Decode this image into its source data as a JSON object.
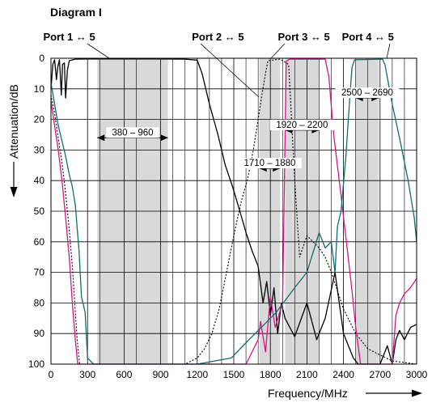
{
  "chart_data": {
    "type": "line",
    "title": "Diagram I",
    "xlabel": "Frequency/MHz",
    "ylabel": "Attenuation/dB",
    "xlim": [
      0,
      3000
    ],
    "ylim": [
      0,
      100
    ],
    "y_inverted": true,
    "grid": true,
    "x_ticks": [
      0,
      300,
      600,
      900,
      1200,
      1500,
      1800,
      2100,
      2400,
      2700,
      3000
    ],
    "y_ticks": [
      0,
      10,
      20,
      30,
      40,
      50,
      60,
      70,
      80,
      90,
      100
    ],
    "x_minor_gridlines": [
      400,
      700,
      1000,
      1100,
      1300,
      1400,
      1600,
      1700,
      1900,
      2000,
      2200,
      2300,
      2500,
      2600,
      2800,
      2900
    ],
    "port_labels": [
      {
        "text": "Port 1 ↔ 5",
        "x": 150
      },
      {
        "text": "Port 2 ↔ 5",
        "x": 1370
      },
      {
        "text": "Port 3 ↔ 5",
        "x": 2075
      },
      {
        "text": "Port 4 ↔ 5",
        "x": 2600
      }
    ],
    "bands": [
      {
        "label": "380 – 960",
        "from": 380,
        "to": 960,
        "label_y": 26
      },
      {
        "label": "1710 – 1880",
        "from": 1710,
        "to": 1880,
        "label_y": 36
      },
      {
        "label": "1920 – 2200",
        "from": 1920,
        "to": 2200,
        "label_y": 23.5
      },
      {
        "label": "2500 – 2690",
        "from": 2500,
        "to": 2690,
        "label_y": 13
      }
    ],
    "colors": {
      "band_fill": "#d9d9d9",
      "grid": "#000000",
      "port1": "#000000",
      "port2": "#000000",
      "port3": "#d4148a",
      "port4": "#0f6e6b"
    },
    "series": [
      {
        "key": "port1",
        "style": "dotted",
        "points": [
          [
            0,
            12
          ],
          [
            30,
            18
          ],
          [
            60,
            26
          ],
          [
            90,
            34
          ],
          [
            120,
            44
          ],
          [
            150,
            56
          ],
          [
            175,
            68
          ],
          [
            195,
            80
          ],
          [
            215,
            92
          ],
          [
            235,
            100
          ],
          [
            300,
            100
          ],
          [
            400,
            100
          ],
          [
            600,
            100
          ],
          [
            900,
            100
          ],
          [
            1000,
            100
          ]
        ]
      },
      {
        "key": "port1",
        "style": "solid",
        "points": [
          [
            0,
            10
          ],
          [
            15,
            2
          ],
          [
            30,
            0.5
          ],
          [
            45,
            7
          ],
          [
            55,
            3
          ],
          [
            70,
            0.5
          ],
          [
            85,
            12
          ],
          [
            95,
            2
          ],
          [
            110,
            1.5
          ],
          [
            120,
            13
          ],
          [
            135,
            4
          ],
          [
            150,
            0.8
          ],
          [
            200,
            0.3
          ],
          [
            300,
            0.2
          ],
          [
            600,
            0.2
          ],
          [
            900,
            0.2
          ],
          [
            1100,
            0.3
          ],
          [
            1200,
            0.6
          ],
          [
            1240,
            5
          ],
          [
            1300,
            15
          ],
          [
            1370,
            25
          ],
          [
            1430,
            35
          ],
          [
            1490,
            42
          ],
          [
            1550,
            50
          ],
          [
            1600,
            57
          ],
          [
            1650,
            63
          ],
          [
            1700,
            68
          ],
          [
            1740,
            80
          ],
          [
            1770,
            73
          ],
          [
            1800,
            84
          ],
          [
            1830,
            75
          ],
          [
            1860,
            90
          ],
          [
            1890,
            80
          ],
          [
            1920,
            85
          ],
          [
            2000,
            91
          ],
          [
            2100,
            80
          ],
          [
            2180,
            92
          ],
          [
            2250,
            85
          ],
          [
            2330,
            70
          ],
          [
            2400,
            90
          ],
          [
            2480,
            98
          ],
          [
            2520,
            100
          ],
          [
            2700,
            100
          ],
          [
            2760,
            94
          ],
          [
            2800,
            100
          ],
          [
            2830,
            92
          ],
          [
            2860,
            89
          ],
          [
            2900,
            92
          ],
          [
            2950,
            88
          ],
          [
            3000,
            87
          ]
        ]
      },
      {
        "key": "port2",
        "style": "dotted",
        "points": [
          [
            900,
            100
          ],
          [
            1000,
            100
          ],
          [
            1100,
            100
          ],
          [
            1200,
            98
          ],
          [
            1260,
            95
          ],
          [
            1320,
            90
          ],
          [
            1380,
            82
          ],
          [
            1440,
            70
          ],
          [
            1500,
            58
          ],
          [
            1560,
            47
          ],
          [
            1610,
            40
          ],
          [
            1660,
            30
          ],
          [
            1700,
            20
          ],
          [
            1730,
            12
          ],
          [
            1760,
            5
          ],
          [
            1780,
            0.8
          ],
          [
            1880,
            0.3
          ],
          [
            1950,
            2
          ],
          [
            2000,
            40
          ],
          [
            2040,
            65
          ],
          [
            2100,
            58
          ],
          [
            2150,
            60
          ],
          [
            2200,
            62
          ],
          [
            2250,
            65
          ],
          [
            2300,
            70
          ],
          [
            2350,
            76
          ],
          [
            2400,
            82
          ],
          [
            2500,
            90
          ],
          [
            2600,
            95
          ],
          [
            2700,
            97
          ],
          [
            2800,
            99
          ],
          [
            3000,
            100
          ]
        ]
      },
      {
        "key": "port3",
        "style": "solid",
        "points": [
          [
            0,
            14
          ],
          [
            30,
            22
          ],
          [
            60,
            30
          ],
          [
            90,
            40
          ],
          [
            120,
            52
          ],
          [
            150,
            65
          ],
          [
            175,
            80
          ],
          [
            200,
            92
          ],
          [
            220,
            100
          ],
          [
            1600,
            100
          ],
          [
            1700,
            92
          ],
          [
            1720,
            86
          ],
          [
            1760,
            96
          ],
          [
            1800,
            78
          ],
          [
            1840,
            88
          ],
          [
            1900,
            80
          ],
          [
            1930,
            1
          ],
          [
            1960,
            0.3
          ],
          [
            2250,
            0.3
          ],
          [
            2280,
            6
          ],
          [
            2320,
            25
          ],
          [
            2380,
            45
          ],
          [
            2430,
            62
          ],
          [
            2470,
            76
          ],
          [
            2500,
            88
          ],
          [
            2540,
            100
          ],
          [
            2800,
            100
          ],
          [
            2830,
            84
          ],
          [
            2860,
            80
          ],
          [
            2900,
            77
          ],
          [
            2950,
            75
          ],
          [
            3000,
            72
          ]
        ]
      },
      {
        "key": "port4",
        "style": "solid",
        "points": [
          [
            0,
            8
          ],
          [
            30,
            15
          ],
          [
            60,
            22
          ],
          [
            90,
            27
          ],
          [
            120,
            32
          ],
          [
            150,
            38
          ],
          [
            175,
            42
          ],
          [
            200,
            48
          ],
          [
            230,
            63
          ],
          [
            250,
            78
          ],
          [
            280,
            83
          ],
          [
            300,
            98
          ],
          [
            350,
            100
          ],
          [
            600,
            100
          ],
          [
            900,
            100
          ],
          [
            1200,
            100
          ],
          [
            1480,
            98
          ],
          [
            1600,
            93
          ],
          [
            1750,
            87
          ],
          [
            1850,
            83
          ],
          [
            2000,
            75
          ],
          [
            2100,
            70
          ],
          [
            2200,
            57
          ],
          [
            2250,
            62
          ],
          [
            2300,
            60
          ],
          [
            2330,
            70
          ],
          [
            2350,
            55
          ],
          [
            2380,
            50
          ],
          [
            2420,
            32
          ],
          [
            2450,
            14
          ],
          [
            2470,
            3
          ],
          [
            2490,
            0.5
          ],
          [
            2720,
            0.3
          ],
          [
            2740,
            2
          ],
          [
            2800,
            15
          ],
          [
            2870,
            28
          ],
          [
            2930,
            40
          ],
          [
            2980,
            52
          ],
          [
            3000,
            60
          ]
        ]
      }
    ]
  }
}
